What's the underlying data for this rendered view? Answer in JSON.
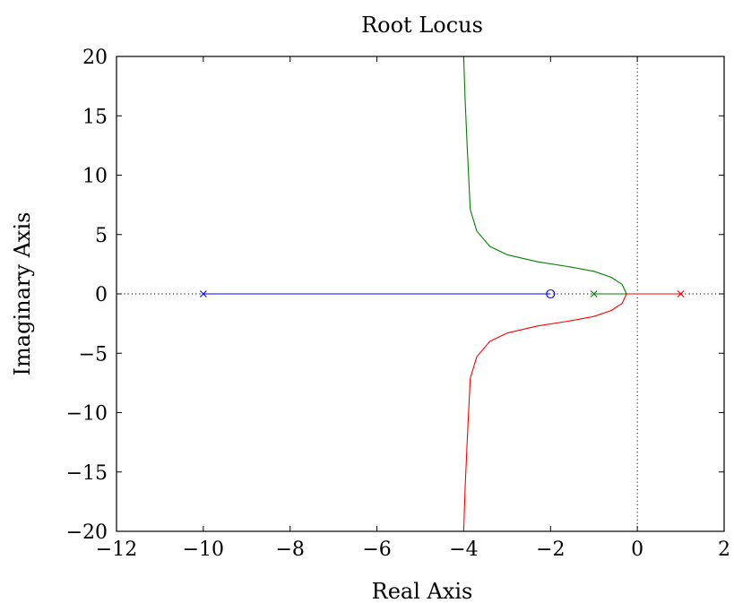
{
  "chart_data": {
    "type": "line",
    "title": "Root Locus",
    "xlabel": "Real Axis",
    "ylabel": "Imaginary Axis",
    "xlim": [
      -12,
      2
    ],
    "ylim": [
      -20,
      20
    ],
    "xticks": [
      -12,
      -10,
      -8,
      -6,
      -4,
      -2,
      0,
      2
    ],
    "yticks": [
      -20,
      -15,
      -10,
      -5,
      0,
      5,
      10,
      15,
      20
    ],
    "xtick_labels": [
      "−12",
      "−10",
      "−8",
      "−6",
      "−4",
      "−2",
      "0",
      "2"
    ],
    "ytick_labels": [
      "−20",
      "−15",
      "−10",
      "−5",
      "0",
      "5",
      "10",
      "15",
      "20"
    ],
    "grid": false,
    "reference_lines": [
      {
        "orientation": "horizontal",
        "value": 0,
        "style": "dotted",
        "color": "#000000"
      },
      {
        "orientation": "vertical",
        "value": 0,
        "style": "dotted",
        "color": "#000000"
      }
    ],
    "series": [
      {
        "color": "#0000ff",
        "x": [
          -10,
          -2
        ],
        "y": [
          0,
          0
        ]
      },
      {
        "color": "#008000",
        "x": [
          -1,
          -0.25,
          -0.35,
          -0.6,
          -1.0,
          -1.6,
          -2.3,
          -3.0,
          -3.4,
          -3.7,
          -3.85,
          -3.92,
          -3.97,
          -4.0
        ],
        "y": [
          0,
          0,
          0.8,
          1.4,
          1.9,
          2.3,
          2.7,
          3.3,
          4.0,
          5.3,
          7.1,
          12.4,
          16.5,
          20
        ]
      },
      {
        "color": "#ff0000",
        "x": [
          1,
          -0.25,
          -0.35,
          -0.6,
          -1.0,
          -1.6,
          -2.3,
          -3.0,
          -3.4,
          -3.7,
          -3.85,
          -3.92,
          -3.97,
          -4.0
        ],
        "y": [
          0,
          0,
          -0.8,
          -1.4,
          -1.9,
          -2.3,
          -2.7,
          -3.3,
          -4.0,
          -5.3,
          -7.1,
          -12.4,
          -16.5,
          -20
        ]
      }
    ],
    "poles": [
      {
        "x": -10,
        "y": 0,
        "color": "#0000ff"
      },
      {
        "x": -1,
        "y": 0,
        "color": "#008000"
      },
      {
        "x": 1,
        "y": 0,
        "color": "#ff0000"
      }
    ],
    "zeros": [
      {
        "x": -2,
        "y": 0,
        "color": "#0000ff"
      }
    ]
  }
}
